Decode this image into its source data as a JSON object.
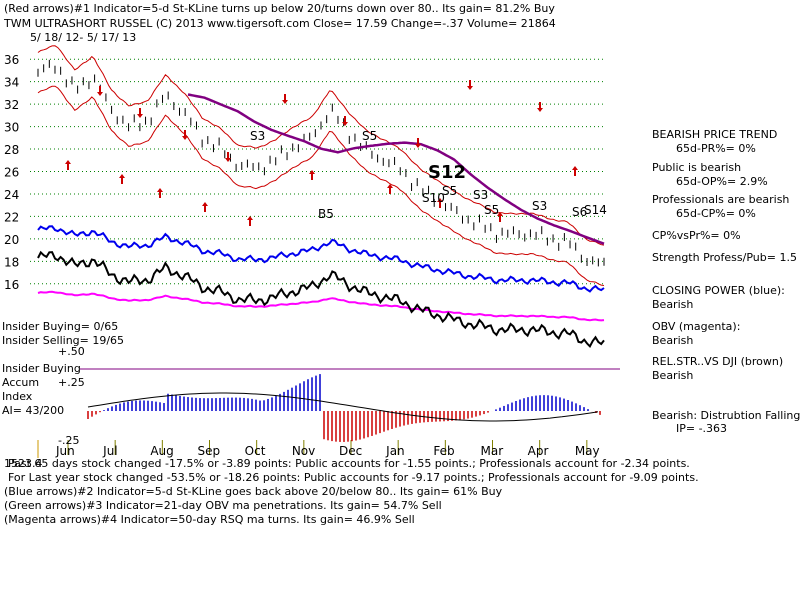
{
  "header": {
    "line1": "(Red arrows)#1 Indicator=5-d St-KLine turns up below 20/turns down over 80.. Its gain= 81.2% Buy",
    "line2": "TWM    ULTRASHORT RUSSEL          (C) 2013 www.tigersoft.com    Close=  17.59   Change=-.37 Volume=  21864",
    "date_range": "5/ 18/ 12- 5/ 17/ 13"
  },
  "right_panel": {
    "p1": "BEARISH PRICE TREND",
    "p2": "65d-PR%= 0%",
    "p3": "Public is bearish",
    "p4": "65d-OP%= 2.9%",
    "p5": "Professionals are bearish",
    "p6": "65d-CP%= 0%",
    "p7": "CP%vsPr%=  0%",
    "p8": "Strength Profess/Pub= 1.5",
    "p9": "CLOSING POWER (blue):",
    "p10": "Bearish",
    "p11": "OBV (magenta):",
    "p12": "Bearish",
    "p13": "REL.STR..VS DJI (brown)",
    "p14": "Bearish",
    "p15": "Bearish:  Distrubtion Falling",
    "p16": "IP= -.363"
  },
  "left_panel": {
    "insider_buying": "Insider Buying= 0/65",
    "insider_selling": "Insider Selling= 19/65",
    "insider_index1": "Insider Buying",
    "insider_index2": "Accum",
    "insider_index3": "Index",
    "ai": "AI= 43/200",
    "acc_p50": "+.50",
    "acc_p25": "+.25",
    "acc_m25": "-.25"
  },
  "footer": {
    "f1": "Past 65 days stock changed -17.5% or -3.89 points:  Public accounts for -1.55 points.;  Professionals account for -2.34 points.",
    "f2": "For Last year stock changed -53.5% or -18.26 points:  Public accounts for -9.17 points.;  Professionals account for -9.09 points.",
    "f3": "(Blue arrows)#2 Indicator=5-d St-KLine goes back above 20/below 80.. Its gain= 61% Buy",
    "f4": "(Green arrows)#3 Indicator=21-day OBV ma penetrations. Its gain= 54.7% Sell",
    "f5": "(Magenta arrows)#4 Indicator=50-day RSQ ma turns. Its gain= 46.9% Sell",
    "corner_overlap": "1523.4"
  },
  "chart_data": {
    "type": "line",
    "title": "TWM ULTRASHORT RUSSEL",
    "y_ticks": [
      36,
      34,
      32,
      30,
      28,
      26,
      24,
      22,
      20,
      18,
      16
    ],
    "ylim": [
      15,
      37
    ],
    "x_ticks": [
      "Jun",
      "Jul",
      "Aug",
      "Sep",
      "Oct",
      "Nov",
      "Dec",
      "Jan",
      "Feb",
      "Mar",
      "Apr",
      "May"
    ],
    "price_close": [
      34.8,
      35.5,
      33.2,
      34.5,
      31.5,
      30.0,
      30.5,
      32.8,
      31.2,
      29.0,
      28.0,
      26.5,
      26.3,
      27.0,
      28.2,
      29.0,
      31.5,
      29.5,
      27.8,
      27.0,
      26.0,
      24.3,
      23.3,
      22.2,
      21.4,
      20.6,
      20.4,
      20.5,
      20.0,
      19.7,
      18.2,
      17.59
    ],
    "signals": [
      "S3",
      "S5",
      "S12",
      "S10",
      "S5",
      "S3",
      "S5",
      "S3",
      "S6",
      "S14",
      "B5"
    ],
    "series": [
      {
        "name": "Price",
        "color": "#000000"
      },
      {
        "name": "Closing Power",
        "color": "#0000ee"
      },
      {
        "name": "OBV",
        "color": "#ff00ff"
      },
      {
        "name": "Rel.Str. vs DJI",
        "color": "#000000"
      },
      {
        "name": "MA",
        "color": "#800080"
      },
      {
        "name": "Bands",
        "color": "#cc0000"
      }
    ]
  }
}
